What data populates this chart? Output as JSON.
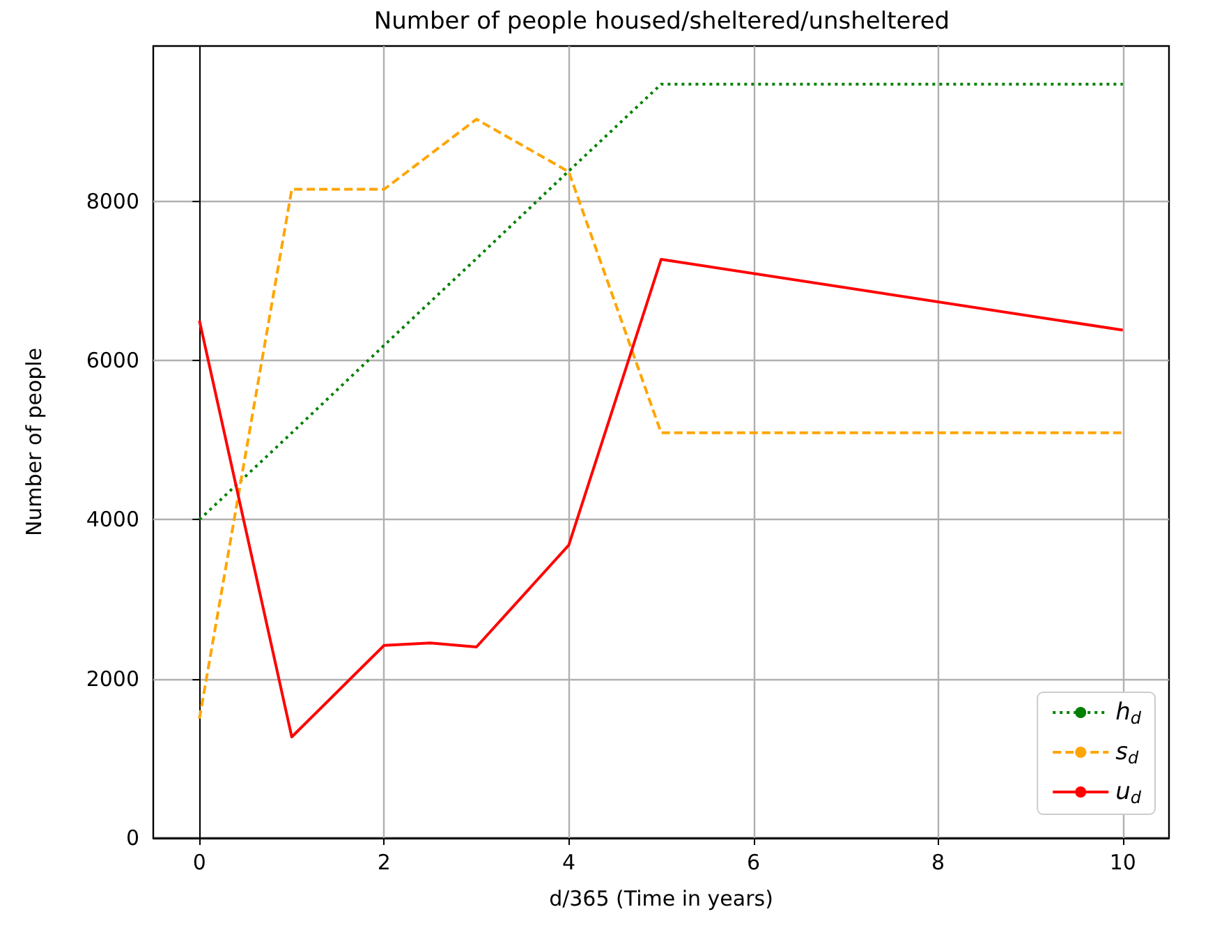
{
  "chart_data": {
    "type": "line",
    "title": "Number of people housed/sheltered/unsheltered",
    "xlabel": "d/365 (Time in years)",
    "ylabel": "Number of people",
    "xlim": [
      -0.5,
      10.5
    ],
    "xticks": [
      0,
      2,
      4,
      6,
      8,
      10
    ],
    "ylim": [
      0,
      9950
    ],
    "yticks": [
      0,
      2000,
      4000,
      6000,
      8000
    ],
    "grid": true,
    "legend": "bottom right",
    "marker": "none",
    "series": [
      {
        "name": "h$_{d}$",
        "color": "#008000",
        "line_style": "dotted",
        "x": [
          0,
          1,
          2,
          3,
          4,
          5,
          6,
          7,
          8,
          9,
          10
        ],
        "values": [
          4000,
          5090,
          6190,
          7280,
          8380,
          9470,
          9470,
          9470,
          9470,
          9470,
          9470
        ]
      },
      {
        "name": "s$_{d}$",
        "color": "#ffa500",
        "line_style": "dashed",
        "x": [
          0,
          1,
          2,
          3,
          4,
          5,
          6,
          7,
          8,
          9,
          10
        ],
        "values": [
          1500,
          8150,
          8150,
          9030,
          8370,
          5090,
          5090,
          5090,
          5090,
          5090,
          5090
        ]
      },
      {
        "name": "u$_{d}$",
        "color": "#ff0000",
        "line_style": "solid",
        "x": [
          0,
          1,
          2,
          2.5,
          3,
          4,
          5,
          10
        ],
        "values": [
          6500,
          1270,
          2420,
          2450,
          2400,
          3680,
          7270,
          6380
        ]
      }
    ]
  }
}
